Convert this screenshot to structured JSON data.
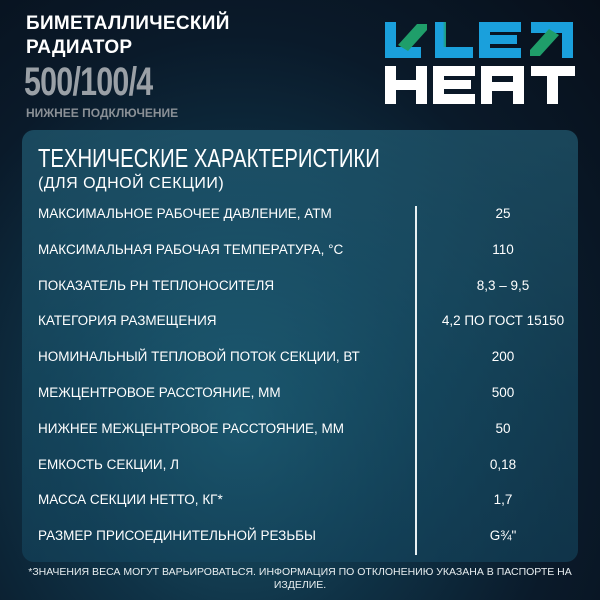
{
  "header": {
    "title_line1": "БИМЕТАЛЛИЧЕСКИЙ",
    "title_line2": "РАДИАТОР",
    "model": "500/100/4",
    "subtitle": "НИЖНЕЕ ПОДКЛЮЧЕНИЕ"
  },
  "logo": {
    "text": "LE HEAT",
    "colors": {
      "blue": "#1aa0dc",
      "green": "#1f9e6a",
      "white": "#ffffff"
    }
  },
  "specs": {
    "title": "ТЕХНИЧЕСКИЕ ХАРАКТЕРИСТИКИ",
    "subtitle": "(ДЛЯ ОДНОЙ СЕКЦИИ)",
    "rows": [
      {
        "label": "МАКСИМАЛЬНОЕ РАБОЧЕЕ ДАВЛЕНИЕ, АТМ",
        "value": "25"
      },
      {
        "label": "МАКСИМАЛЬНАЯ РАБОЧАЯ ТЕМПЕРАТУРА, °С",
        "value": "110"
      },
      {
        "label": "ПОКАЗАТЕЛЬ PH ТЕПЛОНОСИТЕЛЯ",
        "value": "8,3 – 9,5"
      },
      {
        "label": "КАТЕГОРИЯ РАЗМЕЩЕНИЯ",
        "value": "4,2 ПО ГОСТ 15150"
      },
      {
        "label": "НОМИНАЛЬНЫЙ ТЕПЛОВОЙ ПОТОК СЕКЦИИ, ВТ",
        "value": "200"
      },
      {
        "label": "МЕЖЦЕНТРОВОЕ РАССТОЯНИЕ, ММ",
        "value": "500"
      },
      {
        "label": "НИЖНЕЕ МЕЖЦЕНТРОВОЕ РАССТОЯНИЕ, ММ",
        "value": "50"
      },
      {
        "label": "ЕМКОСТЬ СЕКЦИИ, Л",
        "value": "0,18"
      },
      {
        "label": "МАССА СЕКЦИИ НЕТТО, КГ*",
        "value": "1,7"
      },
      {
        "label": "РАЗМЕР ПРИСОЕДИНИТЕЛЬНОЙ РЕЗЬБЫ",
        "value": "G¾\""
      }
    ]
  },
  "footnote": "*ЗНАЧЕНИЯ ВЕСА МОГУТ ВАРЬИРОВАТЬСЯ. ИНФОРМАЦИЯ ПО ОТКЛОНЕНИЮ УКАЗАНА В ПАСПОРТЕ НА ИЗДЕЛИЕ."
}
